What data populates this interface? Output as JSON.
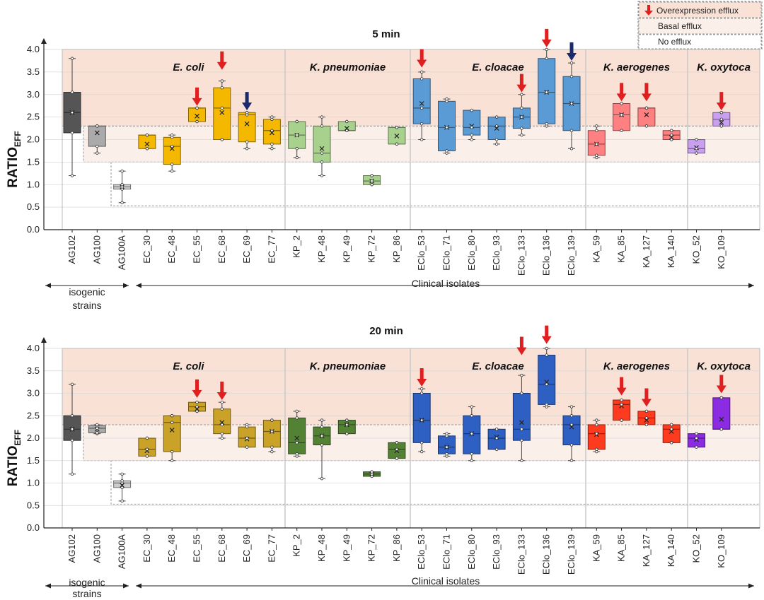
{
  "legend": {
    "overexpression": "Overexpression efflux",
    "basal": "Basal efflux",
    "none": "No efflux",
    "colors": {
      "overexpression": "#f9e1d6",
      "basal": "#fbefea",
      "none": "#ffffff",
      "red_arrow": "#e02020",
      "blue_arrow": "#1a2a6c"
    }
  },
  "categories": [
    "AG102",
    "AG100",
    "AG100A",
    "EC_30",
    "EC_48",
    "EC_55",
    "EC_68",
    "EC_69",
    "EC_77",
    "KP_2",
    "KP_48",
    "KP_49",
    "KP_72",
    "KP_86",
    "EClo_53",
    "EClo_71",
    "EClo_80",
    "EClo_93",
    "EClo_133",
    "EClo_136",
    "EClo_139",
    "KA_59",
    "KA_85",
    "KA_127",
    "KA_140",
    "KO_52",
    "KO_109"
  ],
  "species": [
    {
      "name": "E. coli",
      "start": 3,
      "end": 8
    },
    {
      "name": "K. pneumoniae",
      "start": 9,
      "end": 13
    },
    {
      "name": "E. cloacae",
      "start": 14,
      "end": 20
    },
    {
      "name": "K. aerogenes",
      "start": 21,
      "end": 24
    },
    {
      "name": "K. oxytoca",
      "start": 25,
      "end": 26
    }
  ],
  "groups": {
    "isogenic_line1": "isogenic",
    "isogenic_line2": "strains",
    "clinical": "Clinical isolates"
  },
  "chart_data": [
    {
      "type": "box",
      "title": "5 min",
      "ylabel_main": "RATIO",
      "ylabel_sub": "EFF",
      "ylim": [
        0,
        4.0
      ],
      "yticks": [
        "0.0",
        "0.5",
        "1.0",
        "1.5",
        "2.0",
        "2.5",
        "3.0",
        "3.5",
        "4.0"
      ],
      "thresholds": {
        "basal_upper": 2.3,
        "basal_lower": 1.5,
        "none_lower": 0.53
      },
      "boxes": [
        {
          "min": 1.2,
          "q1": 2.15,
          "med": 2.6,
          "q3": 3.05,
          "max": 3.8,
          "mean": 2.6,
          "color": "#555555"
        },
        {
          "min": 1.7,
          "q1": 1.85,
          "med": 2.3,
          "q3": 2.3,
          "max": 2.3,
          "mean": 2.15,
          "color": "#aaaaaa"
        },
        {
          "min": 0.6,
          "q1": 0.9,
          "med": 0.95,
          "q3": 1.0,
          "max": 1.3,
          "mean": 0.95,
          "color": "#cccccc"
        },
        {
          "min": 1.8,
          "q1": 1.8,
          "med": 2.1,
          "q3": 2.1,
          "max": 2.1,
          "mean": 1.9,
          "color": "#f5b800"
        },
        {
          "min": 1.3,
          "q1": 1.45,
          "med": 1.85,
          "q3": 2.05,
          "max": 2.1,
          "mean": 1.8,
          "color": "#f5b800"
        },
        {
          "min": 2.4,
          "q1": 2.4,
          "med": 2.7,
          "q3": 2.7,
          "max": 2.7,
          "mean": 2.52,
          "color": "#f5b800"
        },
        {
          "min": 2.0,
          "q1": 2.0,
          "med": 2.7,
          "q3": 3.15,
          "max": 3.3,
          "mean": 2.6,
          "color": "#f5b800"
        },
        {
          "min": 1.8,
          "q1": 1.95,
          "med": 2.55,
          "q3": 2.6,
          "max": 2.6,
          "mean": 2.35,
          "color": "#f5b800"
        },
        {
          "min": 1.8,
          "q1": 1.9,
          "med": 2.2,
          "q3": 2.45,
          "max": 2.5,
          "mean": 2.15,
          "color": "#f5b800"
        },
        {
          "min": 1.6,
          "q1": 1.8,
          "med": 2.1,
          "q3": 2.4,
          "max": 2.4,
          "mean": 2.1,
          "color": "#a9d18e"
        },
        {
          "min": 1.2,
          "q1": 1.5,
          "med": 1.7,
          "q3": 2.3,
          "max": 2.5,
          "mean": 1.8,
          "color": "#a9d18e"
        },
        {
          "min": 2.2,
          "q1": 2.2,
          "med": 2.2,
          "q3": 2.4,
          "max": 2.4,
          "mean": 2.25,
          "color": "#a9d18e"
        },
        {
          "min": 1.0,
          "q1": 1.0,
          "med": 1.08,
          "q3": 1.2,
          "max": 1.2,
          "mean": 1.08,
          "color": "#a9d18e"
        },
        {
          "min": 1.9,
          "q1": 1.9,
          "med": 2.27,
          "q3": 2.27,
          "max": 2.27,
          "mean": 2.08,
          "color": "#a9d18e"
        },
        {
          "min": 2.0,
          "q1": 2.35,
          "med": 2.7,
          "q3": 3.35,
          "max": 3.5,
          "mean": 2.8,
          "color": "#5b9bd5"
        },
        {
          "min": 1.7,
          "q1": 1.75,
          "med": 2.27,
          "q3": 2.85,
          "max": 2.9,
          "mean": 2.27,
          "color": "#5b9bd5"
        },
        {
          "min": 2.0,
          "q1": 2.1,
          "med": 2.27,
          "q3": 2.65,
          "max": 2.65,
          "mean": 2.3,
          "color": "#5b9bd5"
        },
        {
          "min": 1.9,
          "q1": 2.0,
          "med": 2.3,
          "q3": 2.5,
          "max": 2.5,
          "mean": 2.25,
          "color": "#5b9bd5"
        },
        {
          "min": 2.1,
          "q1": 2.25,
          "med": 2.5,
          "q3": 2.7,
          "max": 3.0,
          "mean": 2.5,
          "color": "#5b9bd5"
        },
        {
          "min": 2.3,
          "q1": 2.35,
          "med": 3.05,
          "q3": 3.8,
          "max": 4.0,
          "mean": 3.05,
          "color": "#5b9bd5"
        },
        {
          "min": 1.8,
          "q1": 2.2,
          "med": 2.8,
          "q3": 3.4,
          "max": 3.7,
          "mean": 2.8,
          "color": "#5b9bd5"
        },
        {
          "min": 1.6,
          "q1": 1.65,
          "med": 1.9,
          "q3": 2.2,
          "max": 2.3,
          "mean": 1.9,
          "color": "#ff8080"
        },
        {
          "min": 2.2,
          "q1": 2.2,
          "med": 2.55,
          "q3": 2.8,
          "max": 2.8,
          "mean": 2.55,
          "color": "#ff8080"
        },
        {
          "min": 2.3,
          "q1": 2.3,
          "med": 2.7,
          "q3": 2.7,
          "max": 2.7,
          "mean": 2.55,
          "color": "#ff8080"
        },
        {
          "min": 2.0,
          "q1": 2.0,
          "med": 2.1,
          "q3": 2.2,
          "max": 2.2,
          "mean": 2.05,
          "color": "#ff8080"
        },
        {
          "min": 1.7,
          "q1": 1.7,
          "med": 1.8,
          "q3": 2.0,
          "max": 2.0,
          "mean": 1.82,
          "color": "#c9a0f0"
        },
        {
          "min": 2.3,
          "q1": 2.3,
          "med": 2.45,
          "q3": 2.6,
          "max": 2.6,
          "mean": 2.38,
          "color": "#c9a0f0"
        }
      ],
      "arrows": [
        {
          "cat": 5,
          "value": 2.75,
          "kind": "red"
        },
        {
          "cat": 6,
          "value": 3.55,
          "kind": "red"
        },
        {
          "cat": 7,
          "value": 2.65,
          "kind": "blue"
        },
        {
          "cat": 14,
          "value": 3.6,
          "kind": "red"
        },
        {
          "cat": 18,
          "value": 3.05,
          "kind": "red"
        },
        {
          "cat": 19,
          "value": 4.05,
          "kind": "red"
        },
        {
          "cat": 20,
          "value": 3.75,
          "kind": "blue"
        },
        {
          "cat": 22,
          "value": 2.85,
          "kind": "red"
        },
        {
          "cat": 23,
          "value": 2.85,
          "kind": "red"
        },
        {
          "cat": 26,
          "value": 2.65,
          "kind": "red"
        }
      ]
    },
    {
      "type": "box",
      "title": "20 min",
      "ylabel_main": "RATIO",
      "ylabel_sub": "EFF",
      "ylim": [
        0,
        4.0
      ],
      "yticks": [
        "0.0",
        "0.5",
        "1.0",
        "1.5",
        "2.0",
        "2.5",
        "3.0",
        "3.5",
        "4.0"
      ],
      "thresholds": {
        "basal_upper": 2.3,
        "basal_lower": 1.5,
        "none_lower": 0.53
      },
      "boxes": [
        {
          "min": 1.2,
          "q1": 1.95,
          "med": 2.2,
          "q3": 2.5,
          "max": 3.2,
          "mean": 2.2,
          "color": "#555555"
        },
        {
          "min": 2.1,
          "q1": 2.12,
          "med": 2.22,
          "q3": 2.28,
          "max": 2.3,
          "mean": 2.2,
          "color": "#aaaaaa"
        },
        {
          "min": 0.6,
          "q1": 0.9,
          "med": 1.0,
          "q3": 1.05,
          "max": 1.2,
          "mean": 0.95,
          "color": "#cccccc"
        },
        {
          "min": 1.6,
          "q1": 1.6,
          "med": 1.75,
          "q3": 2.0,
          "max": 2.0,
          "mean": 1.72,
          "color": "#c9a227"
        },
        {
          "min": 1.5,
          "q1": 1.7,
          "med": 2.35,
          "q3": 2.5,
          "max": 2.5,
          "mean": 2.18,
          "color": "#c9a227"
        },
        {
          "min": 2.6,
          "q1": 2.6,
          "med": 2.7,
          "q3": 2.8,
          "max": 2.8,
          "mean": 2.65,
          "color": "#c9a227"
        },
        {
          "min": 2.0,
          "q1": 2.1,
          "med": 2.3,
          "q3": 2.65,
          "max": 2.8,
          "mean": 2.35,
          "color": "#c9a227"
        },
        {
          "min": 1.8,
          "q1": 1.8,
          "med": 2.0,
          "q3": 2.25,
          "max": 2.3,
          "mean": 1.98,
          "color": "#c9a227"
        },
        {
          "min": 1.7,
          "q1": 1.8,
          "med": 2.15,
          "q3": 2.4,
          "max": 2.4,
          "mean": 2.15,
          "color": "#c9a227"
        },
        {
          "min": 1.6,
          "q1": 1.65,
          "med": 1.9,
          "q3": 2.45,
          "max": 2.6,
          "mean": 2.0,
          "color": "#548235"
        },
        {
          "min": 1.1,
          "q1": 1.85,
          "med": 2.05,
          "q3": 2.25,
          "max": 2.4,
          "mean": 2.05,
          "color": "#548235"
        },
        {
          "min": 2.1,
          "q1": 2.1,
          "med": 2.3,
          "q3": 2.4,
          "max": 2.4,
          "mean": 2.3,
          "color": "#548235"
        },
        {
          "min": 1.15,
          "q1": 1.15,
          "med": 1.2,
          "q3": 1.25,
          "max": 1.25,
          "mean": 1.2,
          "color": "#548235"
        },
        {
          "min": 1.55,
          "q1": 1.55,
          "med": 1.75,
          "q3": 1.9,
          "max": 1.9,
          "mean": 1.72,
          "color": "#548235"
        },
        {
          "min": 1.7,
          "q1": 1.9,
          "med": 2.4,
          "q3": 3.0,
          "max": 3.1,
          "mean": 2.4,
          "color": "#2e60c4"
        },
        {
          "min": 1.6,
          "q1": 1.65,
          "med": 1.8,
          "q3": 2.05,
          "max": 2.1,
          "mean": 1.8,
          "color": "#2e60c4"
        },
        {
          "min": 1.5,
          "q1": 1.65,
          "med": 2.1,
          "q3": 2.5,
          "max": 2.7,
          "mean": 2.1,
          "color": "#2e60c4"
        },
        {
          "min": 1.75,
          "q1": 1.75,
          "med": 2.0,
          "q3": 2.2,
          "max": 2.2,
          "mean": 2.02,
          "color": "#2e60c4"
        },
        {
          "min": 1.5,
          "q1": 1.95,
          "med": 2.2,
          "q3": 3.0,
          "max": 3.4,
          "mean": 2.35,
          "color": "#2e60c4"
        },
        {
          "min": 2.7,
          "q1": 2.75,
          "med": 3.2,
          "q3": 3.85,
          "max": 4.0,
          "mean": 3.25,
          "color": "#2e60c4"
        },
        {
          "min": 1.5,
          "q1": 1.85,
          "med": 2.3,
          "q3": 2.5,
          "max": 2.7,
          "mean": 2.25,
          "color": "#2e60c4"
        },
        {
          "min": 1.7,
          "q1": 1.75,
          "med": 2.1,
          "q3": 2.3,
          "max": 2.4,
          "mean": 2.08,
          "color": "#ff3b1f"
        },
        {
          "min": 2.4,
          "q1": 2.4,
          "med": 2.75,
          "q3": 2.85,
          "max": 2.85,
          "mean": 2.72,
          "color": "#ff3b1f"
        },
        {
          "min": 2.3,
          "q1": 2.3,
          "med": 2.45,
          "q3": 2.6,
          "max": 2.6,
          "mean": 2.4,
          "color": "#ff3b1f"
        },
        {
          "min": 1.9,
          "q1": 1.9,
          "med": 2.2,
          "q3": 2.3,
          "max": 2.3,
          "mean": 2.15,
          "color": "#ff3b1f"
        },
        {
          "min": 1.8,
          "q1": 1.8,
          "med": 2.0,
          "q3": 2.1,
          "max": 2.1,
          "mean": 1.97,
          "color": "#8b2be2"
        },
        {
          "min": 2.2,
          "q1": 2.2,
          "med": 2.2,
          "q3": 2.9,
          "max": 2.9,
          "mean": 2.42,
          "color": "#8b2be2"
        }
      ],
      "arrows": [
        {
          "cat": 5,
          "value": 2.9,
          "kind": "red"
        },
        {
          "cat": 6,
          "value": 2.85,
          "kind": "red"
        },
        {
          "cat": 14,
          "value": 3.15,
          "kind": "red"
        },
        {
          "cat": 18,
          "value": 3.85,
          "kind": "red"
        },
        {
          "cat": 19,
          "value": 4.1,
          "kind": "red"
        },
        {
          "cat": 22,
          "value": 2.95,
          "kind": "red"
        },
        {
          "cat": 23,
          "value": 2.7,
          "kind": "red"
        },
        {
          "cat": 26,
          "value": 3.0,
          "kind": "red"
        }
      ]
    }
  ]
}
